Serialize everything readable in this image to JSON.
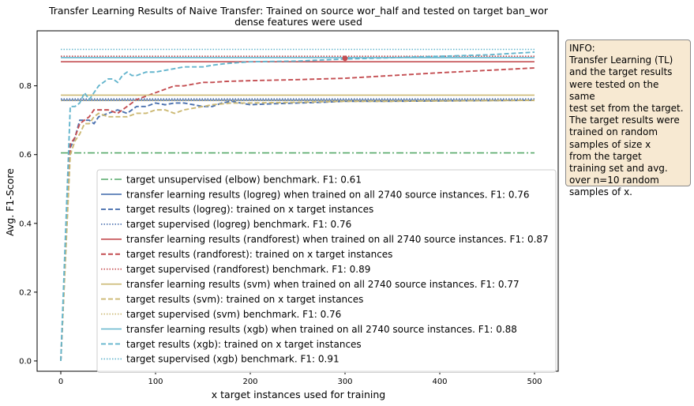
{
  "chart_data": {
    "type": "line",
    "title": "Transfer Learning Results of Naive Transfer: Trained on source wor_half and tested on target ban_wor",
    "subtitle": "dense features were used",
    "xlabel": "x target instances used for training",
    "ylabel": "Avg. F1-Score",
    "xlim": [
      -25,
      525
    ],
    "ylim": [
      -0.03,
      0.96
    ],
    "xticks": [
      0,
      100,
      200,
      300,
      400,
      500
    ],
    "yticks": [
      0.0,
      0.2,
      0.4,
      0.6,
      0.8
    ],
    "grid": false,
    "legend_position": "lower-right",
    "series": [
      {
        "name": "target unsupervised (elbow) benchmark. F1: 0.61",
        "kind": "hline",
        "y": 0.605,
        "color": "#55a868",
        "dash": "dashdot"
      },
      {
        "name": "transfer learning results (logreg) when trained on all 2740 source instances. F1: 0.76",
        "kind": "hline",
        "y": 0.758,
        "color": "#4c72b0",
        "dash": "solid"
      },
      {
        "name": "target results (logreg): trained on x target instances",
        "kind": "curve",
        "color": "#4c72b0",
        "dash": "dashed",
        "x": [
          0,
          10,
          15,
          20,
          25,
          30,
          35,
          40,
          50,
          60,
          70,
          80,
          90,
          100,
          110,
          120,
          130,
          140,
          150,
          160,
          170,
          180,
          190,
          200,
          225,
          250,
          275,
          300,
          350,
          400,
          450,
          500
        ],
        "y": [
          0.0,
          0.62,
          0.65,
          0.7,
          0.7,
          0.7,
          0.69,
          0.71,
          0.72,
          0.73,
          0.72,
          0.74,
          0.74,
          0.75,
          0.745,
          0.75,
          0.75,
          0.745,
          0.74,
          0.74,
          0.75,
          0.755,
          0.75,
          0.745,
          0.748,
          0.75,
          0.752,
          0.755,
          0.755,
          0.756,
          0.757,
          0.758
        ]
      },
      {
        "name": "target supervised (logreg) benchmark. F1: 0.76",
        "kind": "hline",
        "y": 0.762,
        "color": "#4c72b0",
        "dash": "dotted"
      },
      {
        "name": "transfer learning results (randforest) when trained on all 2740 source instances. F1: 0.87",
        "kind": "hline",
        "y": 0.87,
        "color": "#c44e52",
        "dash": "solid"
      },
      {
        "name": "target results (randforest): trained on x target instances",
        "kind": "curve",
        "color": "#c44e52",
        "dash": "dashed",
        "x": [
          0,
          10,
          15,
          20,
          25,
          30,
          35,
          40,
          50,
          60,
          70,
          80,
          90,
          100,
          110,
          120,
          130,
          140,
          150,
          160,
          175,
          200,
          250,
          300,
          350,
          400,
          450,
          500
        ],
        "y": [
          0.0,
          0.63,
          0.65,
          0.69,
          0.7,
          0.71,
          0.73,
          0.73,
          0.73,
          0.72,
          0.74,
          0.76,
          0.77,
          0.78,
          0.79,
          0.8,
          0.8,
          0.805,
          0.81,
          0.81,
          0.813,
          0.815,
          0.818,
          0.822,
          0.83,
          0.838,
          0.845,
          0.852
        ]
      },
      {
        "name": "target supervised (randforest) benchmark. F1: 0.89",
        "kind": "hline",
        "y": 0.886,
        "color": "#c44e52",
        "dash": "dotted"
      },
      {
        "name": "transfer learning results (svm) when trained on all 2740 source instances. F1: 0.77",
        "kind": "hline",
        "y": 0.773,
        "color": "#ccb974",
        "dash": "solid"
      },
      {
        "name": "target results (svm): trained on x target instances",
        "kind": "curve",
        "color": "#ccb974",
        "dash": "dashed",
        "x": [
          0,
          10,
          15,
          20,
          25,
          30,
          35,
          40,
          50,
          60,
          70,
          80,
          90,
          100,
          110,
          120,
          130,
          140,
          150,
          160,
          180,
          200,
          250,
          300,
          350,
          400,
          450,
          500
        ],
        "y": [
          0.0,
          0.6,
          0.64,
          0.66,
          0.69,
          0.69,
          0.71,
          0.72,
          0.71,
          0.71,
          0.71,
          0.72,
          0.72,
          0.73,
          0.73,
          0.72,
          0.73,
          0.735,
          0.74,
          0.745,
          0.75,
          0.75,
          0.752,
          0.755,
          0.755,
          0.756,
          0.757,
          0.758
        ]
      },
      {
        "name": "target supervised (svm) benchmark. F1: 0.76",
        "kind": "hline",
        "y": 0.757,
        "color": "#ccb974",
        "dash": "dotted"
      },
      {
        "name": "transfer learning results (xgb) when trained on all 2740 source instances. F1: 0.88",
        "kind": "hline",
        "y": 0.882,
        "color": "#64b5cd",
        "dash": "solid"
      },
      {
        "name": "target results (xgb): trained on x target instances",
        "kind": "curve",
        "color": "#64b5cd",
        "dash": "dashed",
        "x": [
          0,
          10,
          15,
          20,
          25,
          30,
          35,
          40,
          50,
          55,
          60,
          65,
          70,
          75,
          80,
          90,
          100,
          110,
          120,
          130,
          140,
          150,
          160,
          175,
          200,
          250,
          300,
          350,
          400,
          450,
          500
        ],
        "y": [
          0.0,
          0.74,
          0.74,
          0.75,
          0.78,
          0.76,
          0.78,
          0.8,
          0.82,
          0.82,
          0.81,
          0.83,
          0.84,
          0.83,
          0.83,
          0.84,
          0.84,
          0.845,
          0.85,
          0.855,
          0.855,
          0.855,
          0.86,
          0.865,
          0.87,
          0.872,
          0.878,
          0.882,
          0.886,
          0.89,
          0.898
        ]
      },
      {
        "name": "target supervised (xgb) benchmark. F1: 0.91",
        "kind": "hline",
        "y": 0.906,
        "color": "#64b5cd",
        "dash": "dotted"
      }
    ],
    "markers": [
      {
        "x": 300,
        "y": 0.88,
        "color": "#c44e52"
      }
    ]
  },
  "info_box": {
    "text": "INFO:\nTransfer Learning (TL)\nand the target results\nwere tested on the same\ntest set from the target.\nThe target results were\ntrained on random\nsamples of size x\nfrom the target\ntraining set and avg.\nover n=10 random\nsamples of x.",
    "background": "#f7e9d2"
  }
}
